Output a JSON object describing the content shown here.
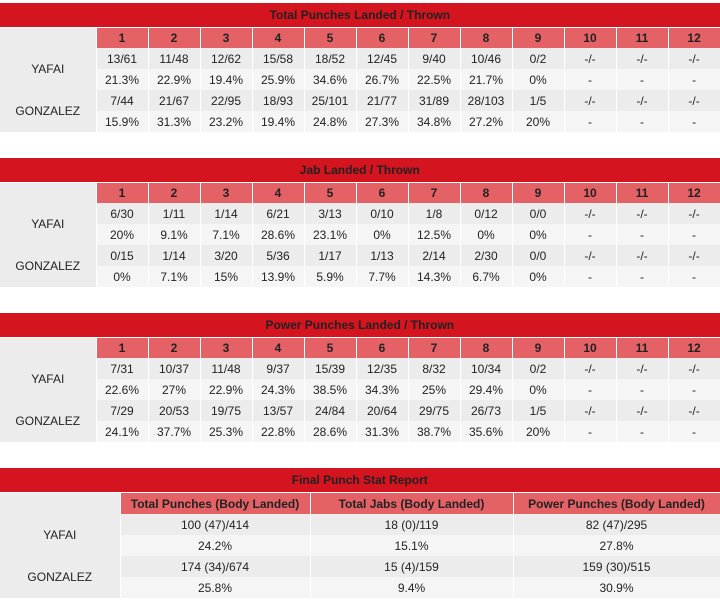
{
  "round_headers": [
    "1",
    "2",
    "3",
    "4",
    "5",
    "6",
    "7",
    "8",
    "9",
    "10",
    "11",
    "12"
  ],
  "fighters": [
    "YAFAI",
    "GONZALEZ"
  ],
  "tables": [
    {
      "title": "Total Punches Landed / Thrown",
      "rows": [
        {
          "fighter": "YAFAI",
          "landed": [
            "13/61",
            "11/48",
            "12/62",
            "15/58",
            "18/52",
            "12/45",
            "9/40",
            "10/46",
            "0/2",
            "-/-",
            "-/-",
            "-/-"
          ],
          "pct": [
            "21.3%",
            "22.9%",
            "19.4%",
            "25.9%",
            "34.6%",
            "26.7%",
            "22.5%",
            "21.7%",
            "0%",
            "-",
            "-",
            "-"
          ]
        },
        {
          "fighter": "GONZALEZ",
          "landed": [
            "7/44",
            "21/67",
            "22/95",
            "18/93",
            "25/101",
            "21/77",
            "31/89",
            "28/103",
            "1/5",
            "-/-",
            "-/-",
            "-/-"
          ],
          "pct": [
            "15.9%",
            "31.3%",
            "23.2%",
            "19.4%",
            "24.8%",
            "27.3%",
            "34.8%",
            "27.2%",
            "20%",
            "-",
            "-",
            "-"
          ]
        }
      ]
    },
    {
      "title": "Jab Landed / Thrown",
      "rows": [
        {
          "fighter": "YAFAI",
          "landed": [
            "6/30",
            "1/11",
            "1/14",
            "6/21",
            "3/13",
            "0/10",
            "1/8",
            "0/12",
            "0/0",
            "-/-",
            "-/-",
            "-/-"
          ],
          "pct": [
            "20%",
            "9.1%",
            "7.1%",
            "28.6%",
            "23.1%",
            "0%",
            "12.5%",
            "0%",
            "0%",
            "-",
            "-",
            "-"
          ]
        },
        {
          "fighter": "GONZALEZ",
          "landed": [
            "0/15",
            "1/14",
            "3/20",
            "5/36",
            "1/17",
            "1/13",
            "2/14",
            "2/30",
            "0/0",
            "-/-",
            "-/-",
            "-/-"
          ],
          "pct": [
            "0%",
            "7.1%",
            "15%",
            "13.9%",
            "5.9%",
            "7.7%",
            "14.3%",
            "6.7%",
            "0%",
            "-",
            "-",
            "-"
          ]
        }
      ]
    },
    {
      "title": "Power Punches Landed / Thrown",
      "rows": [
        {
          "fighter": "YAFAI",
          "landed": [
            "7/31",
            "10/37",
            "11/48",
            "9/37",
            "15/39",
            "12/35",
            "8/32",
            "10/34",
            "0/2",
            "-/-",
            "-/-",
            "-/-"
          ],
          "pct": [
            "22.6%",
            "27%",
            "22.9%",
            "24.3%",
            "38.5%",
            "34.3%",
            "25%",
            "29.4%",
            "0%",
            "-",
            "-",
            "-"
          ]
        },
        {
          "fighter": "GONZALEZ",
          "landed": [
            "7/29",
            "20/53",
            "19/75",
            "13/57",
            "24/84",
            "20/64",
            "29/75",
            "26/73",
            "1/5",
            "-/-",
            "-/-",
            "-/-"
          ],
          "pct": [
            "24.1%",
            "37.7%",
            "25.3%",
            "22.8%",
            "28.6%",
            "31.3%",
            "38.7%",
            "35.6%",
            "20%",
            "-",
            "-",
            "-"
          ]
        }
      ]
    }
  ],
  "final": {
    "title": "Final Punch Stat Report",
    "headers": [
      "Total Punches (Body Landed)",
      "Total Jabs (Body Landed)",
      "Power Punches (Body Landed)"
    ],
    "rows": [
      {
        "fighter": "YAFAI",
        "values": [
          "100 (47)/414",
          "18 (0)/119",
          "82 (47)/295"
        ],
        "pct": [
          "24.2%",
          "15.1%",
          "27.8%"
        ]
      },
      {
        "fighter": "GONZALEZ",
        "values": [
          "174 (34)/674",
          "15 (4)/159",
          "159 (30)/515"
        ],
        "pct": [
          "25.8%",
          "9.4%",
          "30.9%"
        ]
      }
    ]
  },
  "colors": {
    "title_bg": "#d4141e",
    "header_bg": "#e46165",
    "row_bg": "#ececec",
    "row_alt_bg": "#f5f5f5"
  }
}
